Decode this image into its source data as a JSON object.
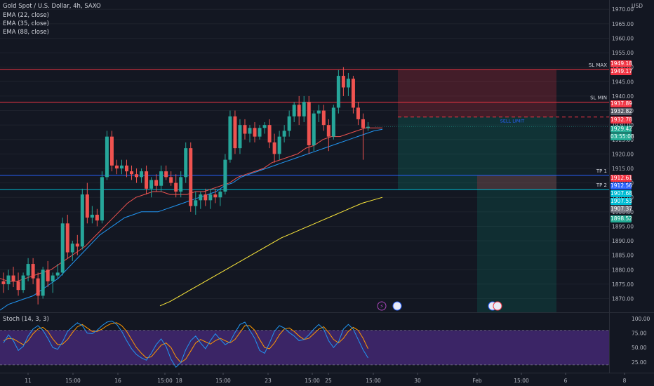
{
  "legend": {
    "symbol": "Gold Spot / U.S. Dollar, 4h, SAXO",
    "ema22": "EMA (22, close)",
    "ema35": "EMA (35, close)",
    "ema88": "EMA (88, close)",
    "stoch": "Stoch (14, 3, 3)"
  },
  "currency": "USD",
  "colors": {
    "background": "#131722",
    "up": "#26a69a",
    "down": "#ef5350",
    "ema22": "#ef5350",
    "ema35": "#2196f3",
    "ema88": "#ffeb3b",
    "stoch_k": "#2196f3",
    "stoch_d": "#ff9800",
    "stoch_band": "#4a2b7d"
  },
  "levels": [
    {
      "name": "SL MAX",
      "price": 1949.18,
      "color": "#f23645"
    },
    {
      "name": "SL MIN",
      "price": 1937.89,
      "color": "#f23645"
    },
    {
      "name": "TP 1",
      "price": 1912.61,
      "color": "#2962ff"
    },
    {
      "name": "TP 2",
      "price": 1907.68,
      "color": "#00bcd4"
    }
  ],
  "sell_limit": {
    "label": "SELL LIMIT",
    "price": 1932.78
  },
  "price_labels": [
    {
      "value": "1949.18",
      "bg": "#f23645"
    },
    {
      "value": "1949.17",
      "bg": "#f23645"
    },
    {
      "value": "1937.89",
      "bg": "#f23645"
    },
    {
      "value": "1932.82",
      "bg": "#5d606b"
    },
    {
      "value": "1932.78",
      "bg": "#f23645"
    },
    {
      "value": "1929.42",
      "bg": "#22ab94"
    },
    {
      "value": "03:55:08",
      "bg": "#22ab94"
    },
    {
      "value": "1912.61",
      "bg": "#f23645"
    },
    {
      "value": "1912.56",
      "bg": "#2962ff"
    },
    {
      "value": "1907.68",
      "bg": "#00bcd4"
    },
    {
      "value": "1907.53",
      "bg": "#00bcd4"
    },
    {
      "value": "1907.37",
      "bg": "#787b86"
    },
    {
      "value": "1898.52",
      "bg": "#22ab94"
    }
  ],
  "chart_data": [
    {
      "type": "candlestick",
      "title": "Gold Spot / U.S. Dollar, 4h, SAXO",
      "ylim": [
        1866,
        1972
      ],
      "y_ticks": [
        1870,
        1875,
        1880,
        1885,
        1890,
        1895,
        1900,
        1905,
        1910,
        1915,
        1920,
        1925,
        1930,
        1935,
        1940,
        1945,
        1950,
        1955,
        1960,
        1965,
        1970
      ],
      "x_labels": [
        "11",
        "15:00",
        "16",
        "15:00",
        "18",
        "15:00",
        "23",
        "15:00",
        "25",
        "15:00",
        "30",
        "Feb",
        "15:00",
        "6",
        "8"
      ],
      "ohlc": [
        [
          1876,
          1879,
          1872,
          1875
        ],
        [
          1875,
          1880,
          1873,
          1878
        ],
        [
          1878,
          1881,
          1874,
          1876
        ],
        [
          1876,
          1879,
          1871,
          1873
        ],
        [
          1873,
          1879,
          1872,
          1878
        ],
        [
          1878,
          1884,
          1876,
          1882
        ],
        [
          1882,
          1884,
          1875,
          1877
        ],
        [
          1877,
          1879,
          1868,
          1871
        ],
        [
          1871,
          1881,
          1870,
          1880
        ],
        [
          1880,
          1883,
          1874,
          1876
        ],
        [
          1876,
          1879,
          1872,
          1878
        ],
        [
          1878,
          1882,
          1877,
          1879
        ],
        [
          1879,
          1898,
          1878,
          1896
        ],
        [
          1896,
          1899,
          1884,
          1886
        ],
        [
          1886,
          1890,
          1883,
          1889
        ],
        [
          1889,
          1892,
          1885,
          1888
        ],
        [
          1888,
          1908,
          1887,
          1906
        ],
        [
          1906,
          1910,
          1896,
          1898
        ],
        [
          1898,
          1902,
          1896,
          1899
        ],
        [
          1899,
          1901,
          1895,
          1897
        ],
        [
          1897,
          1914,
          1896,
          1912
        ],
        [
          1912,
          1928,
          1911,
          1926
        ],
        [
          1926,
          1928,
          1914,
          1916
        ],
        [
          1916,
          1918,
          1913,
          1915
        ],
        [
          1915,
          1918,
          1913,
          1916
        ],
        [
          1916,
          1918,
          1912,
          1914
        ],
        [
          1914,
          1916,
          1911,
          1913
        ],
        [
          1913,
          1915,
          1910,
          1912
        ],
        [
          1912,
          1915,
          1910,
          1914
        ],
        [
          1914,
          1916,
          1906,
          1908
        ],
        [
          1908,
          1912,
          1905,
          1911
        ],
        [
          1911,
          1913,
          1907,
          1909
        ],
        [
          1909,
          1916,
          1907,
          1914
        ],
        [
          1914,
          1916,
          1911,
          1912
        ],
        [
          1912,
          1914,
          1909,
          1910
        ],
        [
          1910,
          1913,
          1905,
          1907
        ],
        [
          1907,
          1914,
          1905,
          1912
        ],
        [
          1912,
          1924,
          1910,
          1922
        ],
        [
          1922,
          1924,
          1900,
          1902
        ],
        [
          1902,
          1907,
          1899,
          1904
        ],
        [
          1904,
          1907,
          1901,
          1906
        ],
        [
          1906,
          1908,
          1902,
          1904
        ],
        [
          1904,
          1908,
          1901,
          1906
        ],
        [
          1906,
          1908,
          1903,
          1905
        ],
        [
          1905,
          1908,
          1902,
          1907
        ],
        [
          1907,
          1920,
          1906,
          1918
        ],
        [
          1918,
          1935,
          1917,
          1933
        ],
        [
          1933,
          1935,
          1920,
          1922
        ],
        [
          1922,
          1932,
          1920,
          1930
        ],
        [
          1930,
          1932,
          1925,
          1927
        ],
        [
          1927,
          1930,
          1924,
          1929
        ],
        [
          1929,
          1931,
          1924,
          1926
        ],
        [
          1926,
          1930,
          1925,
          1929
        ],
        [
          1929,
          1931,
          1927,
          1930
        ],
        [
          1930,
          1932,
          1922,
          1924
        ],
        [
          1924,
          1927,
          1917,
          1920
        ],
        [
          1920,
          1928,
          1918,
          1926
        ],
        [
          1926,
          1930,
          1924,
          1928
        ],
        [
          1928,
          1935,
          1926,
          1933
        ],
        [
          1933,
          1938,
          1931,
          1937
        ],
        [
          1937,
          1940,
          1930,
          1933
        ],
        [
          1933,
          1940,
          1931,
          1938
        ],
        [
          1938,
          1940,
          1920,
          1923
        ],
        [
          1923,
          1935,
          1921,
          1934
        ],
        [
          1934,
          1937,
          1931,
          1935
        ],
        [
          1935,
          1937,
          1928,
          1930
        ],
        [
          1930,
          1932,
          1921,
          1926
        ],
        [
          1926,
          1937,
          1925,
          1936
        ],
        [
          1936,
          1949,
          1934,
          1947
        ],
        [
          1947,
          1950,
          1940,
          1943
        ],
        [
          1943,
          1948,
          1940,
          1946
        ],
        [
          1946,
          1947,
          1934,
          1936
        ],
        [
          1936,
          1938,
          1930,
          1932
        ],
        [
          1932,
          1934,
          1918,
          1929
        ],
        [
          1929,
          1931,
          1928,
          1929.4
        ]
      ],
      "ema22": [
        1877,
        1876,
        1876,
        1877,
        1878,
        1879,
        1880,
        1882,
        1884,
        1886,
        1888,
        1891,
        1894,
        1897,
        1900,
        1903,
        1905,
        1906,
        1907,
        1907,
        1906,
        1906,
        1906,
        1907,
        1907,
        1908,
        1909,
        1910,
        1912,
        1913,
        1914,
        1915,
        1917,
        1918,
        1919,
        1920,
        1922,
        1923,
        1925,
        1926,
        1926,
        1927,
        1928,
        1929,
        1929,
        1929
      ],
      "ema35": [
        1866,
        1868,
        1869,
        1870,
        1871,
        1873,
        1875,
        1877,
        1880,
        1883,
        1886,
        1889,
        1892,
        1894,
        1896,
        1898,
        1899,
        1900,
        1900,
        1900,
        1901,
        1902,
        1903,
        1904,
        1905,
        1906,
        1907,
        1909,
        1910,
        1912,
        1913,
        1914,
        1915,
        1916,
        1917,
        1918,
        1919,
        1920,
        1921,
        1922,
        1923,
        1924,
        1925,
        1926,
        1927,
        1928,
        1928.5
      ],
      "ema88": [
        1867.5,
        1869,
        1871,
        1873,
        1875,
        1877,
        1879,
        1881,
        1883,
        1885,
        1887,
        1889,
        1891,
        1892.5,
        1894,
        1895.5,
        1897,
        1898.5,
        1900,
        1901.5,
        1903,
        1904,
        1905
      ],
      "stoch": {
        "ylim": [
          15,
          105
        ],
        "y_ticks": [
          25.0,
          50.0,
          75.0,
          100.0
        ],
        "band": [
          20,
          80
        ],
        "k": [
          58,
          72,
          62,
          45,
          52,
          70,
          82,
          88,
          80,
          66,
          50,
          47,
          60,
          78,
          86,
          93,
          88,
          75,
          74,
          80,
          88,
          94,
          96,
          90,
          78,
          62,
          48,
          38,
          32,
          28,
          40,
          55,
          65,
          52,
          30,
          16,
          24,
          46,
          62,
          70,
          58,
          48,
          62,
          74,
          64,
          55,
          60,
          76,
          90,
          94,
          80,
          66,
          45,
          40,
          58,
          78,
          88,
          84,
          76,
          70,
          62,
          64,
          72,
          82,
          90,
          82,
          62,
          50,
          60,
          82,
          90,
          82,
          64,
          46,
          32
        ],
        "d": [
          62,
          66,
          65,
          60,
          55,
          62,
          74,
          82,
          85,
          78,
          65,
          55,
          56,
          64,
          76,
          86,
          90,
          84,
          78,
          78,
          82,
          88,
          92,
          93,
          88,
          78,
          64,
          50,
          40,
          32,
          34,
          44,
          54,
          58,
          50,
          34,
          24,
          30,
          44,
          58,
          64,
          60,
          56,
          62,
          66,
          62,
          58,
          64,
          76,
          88,
          88,
          80,
          64,
          50,
          48,
          58,
          72,
          82,
          84,
          78,
          70,
          64,
          66,
          74,
          82,
          86,
          76,
          64,
          58,
          66,
          78,
          85,
          80,
          66,
          48
        ]
      }
    }
  ]
}
